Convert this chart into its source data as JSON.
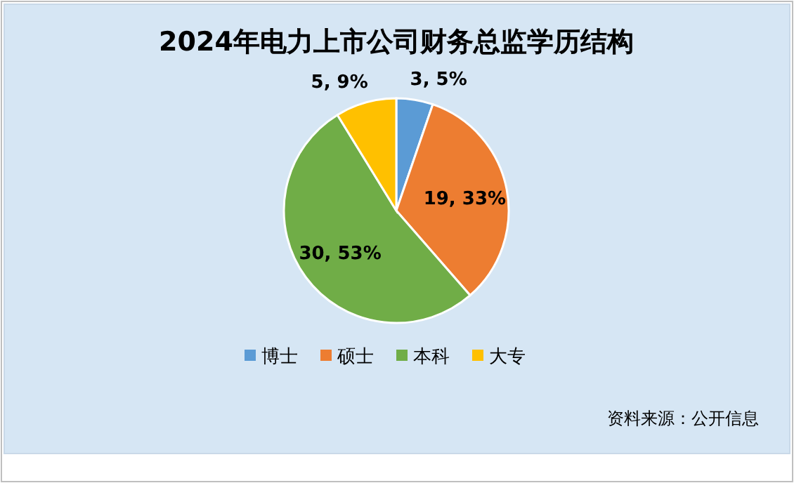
{
  "chart_data": {
    "type": "pie",
    "title": "2024年电力上市公司财务总监学历结构",
    "categories": [
      "博士",
      "硕士",
      "本科",
      "大专"
    ],
    "values": [
      3,
      19,
      30,
      5
    ],
    "colors": [
      "#5b9bd5",
      "#ed7d31",
      "#70ad47",
      "#ffc000"
    ],
    "value_labels": [
      "3, 5%",
      "19, 33%",
      "30, 53%",
      "5, 9%"
    ],
    "legend": "bottom",
    "annotations": [
      "资料来源：公开信息"
    ]
  }
}
